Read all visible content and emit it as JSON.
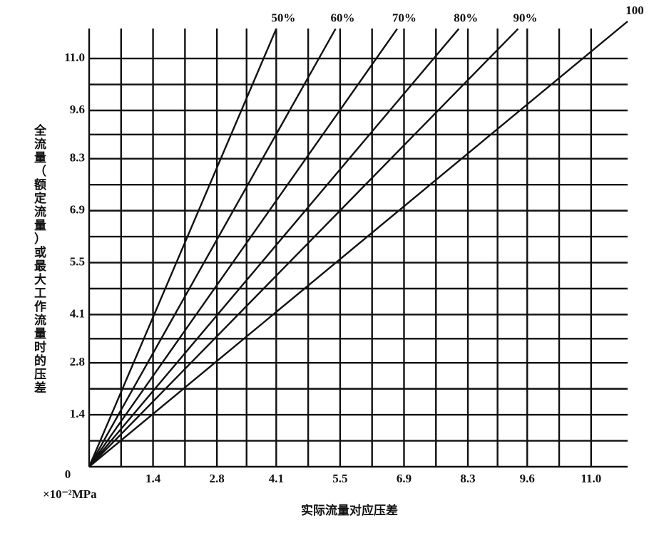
{
  "chart_data": {
    "type": "line",
    "y_label": "全流量（额定流量）或最大工作流量时的压差",
    "x_label": "实际流量对应压差",
    "unit": "×10⁻²MPa",
    "xlim": [
      0,
      11.8
    ],
    "ylim": [
      0,
      12.0
    ],
    "xticks": [
      0,
      1.4,
      2.8,
      4.1,
      5.5,
      6.9,
      8.3,
      9.6,
      {
        "value": 11.0,
        "label": "11.0"
      }
    ],
    "yticks": [
      1.4,
      2.8,
      4.1,
      5.5,
      6.9,
      8.3,
      9.6,
      {
        "value": 11.0,
        "label": "11.0"
      }
    ],
    "grid": true,
    "series": [
      {
        "name": "50%",
        "color": "#111111",
        "x": [
          0,
          4.1
        ],
        "values": [
          0,
          11.8
        ]
      },
      {
        "name": "60%",
        "color": "#111111",
        "x": [
          0,
          5.4
        ],
        "values": [
          0,
          11.8
        ]
      },
      {
        "name": "70%",
        "color": "#111111",
        "x": [
          0,
          6.75
        ],
        "values": [
          0,
          11.8
        ]
      },
      {
        "name": "80%",
        "color": "#111111",
        "x": [
          0,
          8.1
        ],
        "values": [
          0,
          11.8
        ]
      },
      {
        "name": "90%",
        "color": "#111111",
        "x": [
          0,
          9.4
        ],
        "values": [
          0,
          11.8
        ]
      },
      {
        "name": "100",
        "color": "#111111",
        "x": [
          0,
          11.8
        ],
        "values": [
          0,
          12.0
        ]
      }
    ]
  }
}
